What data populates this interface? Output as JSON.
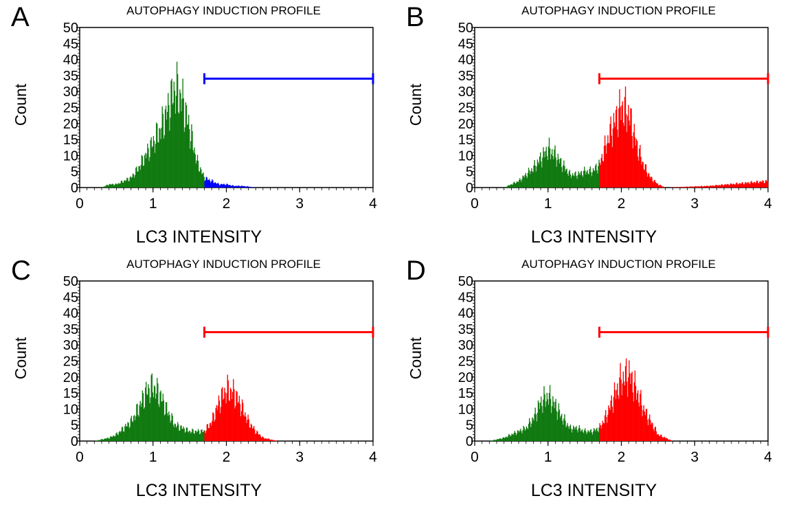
{
  "chart_data": [
    {
      "panel": "A",
      "type": "bar",
      "title": "AUTOPHAGY INDUCTION PROFILE",
      "xlabel": "LC3 INTENSITY",
      "ylabel": "Count",
      "xlim": [
        0,
        4
      ],
      "ylim": [
        0,
        50
      ],
      "xticks": [
        0,
        1,
        2,
        3,
        4
      ],
      "yticks": [
        0,
        5,
        10,
        15,
        20,
        25,
        30,
        35,
        40,
        45,
        50
      ],
      "gate": {
        "start": 1.7,
        "end": 4.0,
        "count": 34,
        "color": "#0000ff"
      },
      "fill_colors": {
        "below_gate": "#117a11",
        "above_gate": "#0000ff"
      },
      "series": [
        {
          "x": [
            0.3,
            0.4,
            0.5,
            0.6,
            0.7,
            0.8,
            0.9,
            1.0,
            1.1,
            1.2,
            1.3,
            1.4,
            1.5,
            1.6,
            1.7,
            1.8,
            1.9,
            2.0,
            2.1,
            2.2,
            2.3,
            2.4
          ],
          "values": [
            0,
            1,
            1,
            2,
            3,
            6,
            10,
            14,
            18,
            24,
            31,
            27,
            18,
            8,
            3,
            2,
            1,
            1,
            0.5,
            0.5,
            0.3,
            0
          ]
        }
      ]
    },
    {
      "panel": "B",
      "type": "bar",
      "title": "AUTOPHAGY INDUCTION PROFILE",
      "xlabel": "LC3 INTENSITY",
      "ylabel": "Count",
      "xlim": [
        0,
        4
      ],
      "ylim": [
        0,
        50
      ],
      "xticks": [
        0,
        1,
        2,
        3,
        4
      ],
      "yticks": [
        0,
        5,
        10,
        15,
        20,
        25,
        30,
        35,
        40,
        45,
        50
      ],
      "gate": {
        "start": 1.7,
        "end": 4.0,
        "count": 34,
        "color": "#ff0000"
      },
      "fill_colors": {
        "below_gate": "#117a11",
        "above_gate": "#ff0000"
      },
      "series": [
        {
          "x": [
            0.4,
            0.5,
            0.6,
            0.7,
            0.8,
            0.9,
            1.0,
            1.1,
            1.2,
            1.3,
            1.4,
            1.5,
            1.6,
            1.7,
            1.8,
            1.9,
            2.0,
            2.1,
            2.2,
            2.3,
            2.4,
            2.5,
            2.6,
            3.2,
            4.0
          ],
          "values": [
            0,
            1,
            2,
            4,
            6,
            9,
            12,
            10,
            7,
            4,
            4,
            5,
            5,
            7,
            14,
            20,
            25,
            23,
            14,
            7,
            3,
            1,
            0,
            0.5,
            2
          ]
        }
      ]
    },
    {
      "panel": "C",
      "type": "bar",
      "title": "AUTOPHAGY INDUCTION PROFILE",
      "xlabel": "LC3 INTENSITY",
      "ylabel": "Count",
      "xlim": [
        0,
        4
      ],
      "ylim": [
        0,
        50
      ],
      "xticks": [
        0,
        1,
        2,
        3,
        4
      ],
      "yticks": [
        0,
        5,
        10,
        15,
        20,
        25,
        30,
        35,
        40,
        45,
        50
      ],
      "gate": {
        "start": 1.7,
        "end": 4.0,
        "count": 34,
        "color": "#ff0000"
      },
      "fill_colors": {
        "below_gate": "#117a11",
        "above_gate": "#ff0000"
      },
      "series": [
        {
          "x": [
            0.2,
            0.3,
            0.4,
            0.5,
            0.6,
            0.7,
            0.8,
            0.9,
            1.0,
            1.1,
            1.2,
            1.3,
            1.4,
            1.5,
            1.6,
            1.7,
            1.8,
            1.9,
            2.0,
            2.1,
            2.2,
            2.3,
            2.4,
            2.5,
            2.6,
            2.7
          ],
          "values": [
            0,
            0.5,
            1,
            2,
            4,
            6,
            10,
            15,
            17,
            14,
            9,
            5,
            4,
            3,
            3,
            3,
            6,
            12,
            16,
            15,
            11,
            6,
            3,
            1,
            0.5,
            0
          ]
        }
      ]
    },
    {
      "panel": "D",
      "type": "bar",
      "title": "AUTOPHAGY INDUCTION PROFILE",
      "xlabel": "LC3 INTENSITY",
      "ylabel": "Count",
      "xlim": [
        0,
        4
      ],
      "ylim": [
        0,
        50
      ],
      "xticks": [
        0,
        1,
        2,
        3,
        4
      ],
      "yticks": [
        0,
        5,
        10,
        15,
        20,
        25,
        30,
        35,
        40,
        45,
        50
      ],
      "gate": {
        "start": 1.7,
        "end": 4.0,
        "count": 34,
        "color": "#ff0000"
      },
      "fill_colors": {
        "below_gate": "#117a11",
        "above_gate": "#ff0000"
      },
      "series": [
        {
          "x": [
            0.2,
            0.3,
            0.4,
            0.5,
            0.6,
            0.7,
            0.8,
            0.9,
            1.0,
            1.1,
            1.2,
            1.3,
            1.4,
            1.5,
            1.6,
            1.7,
            1.8,
            1.9,
            2.0,
            2.1,
            2.2,
            2.3,
            2.4,
            2.5,
            2.6,
            2.7
          ],
          "values": [
            0,
            0.5,
            1,
            2,
            3,
            4,
            7,
            12,
            14,
            11,
            7,
            4,
            4,
            3,
            3,
            4,
            8,
            14,
            19,
            21,
            16,
            10,
            6,
            2,
            1,
            0
          ]
        }
      ]
    }
  ]
}
